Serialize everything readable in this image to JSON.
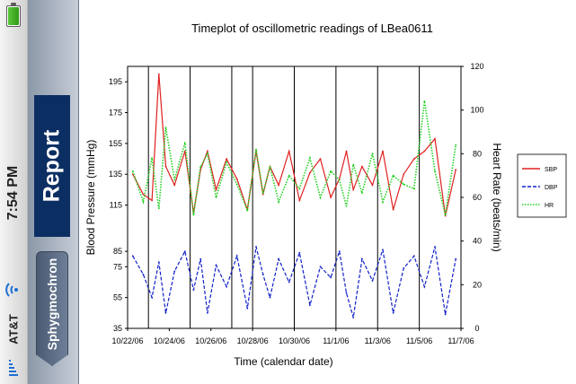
{
  "status_bar": {
    "time": "7:54 PM",
    "carrier": "AT&T",
    "icons": [
      "battery-icon",
      "wifi-icon",
      "signal-bars-icon"
    ]
  },
  "nav": {
    "title": "Report",
    "back_label": "Sphygmochron"
  },
  "chart_data": {
    "type": "line",
    "title": "Timeplot of oscillometric readings of LBea0611",
    "xlabel": "Time (calendar date)",
    "ylabel": "Blood Pressure (mmHg)",
    "ylabel_right": "Heart Rate (beats/min)",
    "x_ticks": [
      "10/22/06",
      "10/24/06",
      "10/26/06",
      "10/28/06",
      "10/30/06",
      "11/1/06",
      "11/3/06",
      "11/5/06",
      "11/7/06"
    ],
    "y_ticks": [
      35,
      55,
      75,
      85,
      115,
      135,
      155,
      175,
      195
    ],
    "y_right_ticks": [
      0,
      20,
      40,
      60,
      80,
      100,
      120
    ],
    "ylim": [
      35,
      205
    ],
    "ylim_right": [
      0,
      120
    ],
    "xlim": [
      "10/22/06",
      "11/7/06"
    ],
    "vertical_lines": [
      "10/23/06",
      "10/25/06",
      "10/27/06",
      "10/28/06",
      "10/30/06",
      "11/1/06",
      "11/3/06",
      "11/5/06"
    ],
    "legend": {
      "placement": "right",
      "entries": [
        {
          "name": "SBP",
          "color": "#e02020",
          "style": "solid"
        },
        {
          "name": "DBP",
          "color": "#1020c8",
          "style": "dashed"
        },
        {
          "name": "HR",
          "color": "#20d020",
          "style": "dotted"
        }
      ]
    },
    "series": [
      {
        "name": "SBP",
        "axis": "left",
        "color": "#e02020",
        "x": [
          "10/22/06",
          "10/22/06",
          "10/23/06",
          "10/23/06",
          "10/23/06",
          "10/24/06",
          "10/24/06",
          "10/25/06",
          "10/25/06",
          "10/25/06",
          "10/26/06",
          "10/26/06",
          "10/27/06",
          "10/27/06",
          "10/28/06",
          "10/28/06",
          "10/28/06",
          "10/29/06",
          "10/29/06",
          "10/30/06",
          "10/30/06",
          "10/31/06",
          "10/31/06",
          "11/1/06",
          "11/1/06",
          "11/1/06",
          "11/2/06",
          "11/2/06",
          "11/3/06",
          "11/3/06",
          "11/4/06",
          "11/4/06",
          "11/5/06",
          "11/5/06",
          "11/6/06",
          "11/6/06"
        ],
        "y": [
          135,
          122,
          118,
          200,
          140,
          128,
          150,
          110,
          138,
          150,
          125,
          145,
          132,
          112,
          150,
          122,
          140,
          128,
          150,
          118,
          136,
          145,
          120,
          132,
          150,
          125,
          140,
          128,
          150,
          112,
          135,
          145,
          150,
          158,
          108,
          138
        ]
      },
      {
        "name": "DBP",
        "axis": "left",
        "color": "#1020c8",
        "x": [
          "10/22/06",
          "10/22/06",
          "10/23/06",
          "10/23/06",
          "10/23/06",
          "10/24/06",
          "10/24/06",
          "10/25/06",
          "10/25/06",
          "10/25/06",
          "10/26/06",
          "10/26/06",
          "10/27/06",
          "10/27/06",
          "10/28/06",
          "10/28/06",
          "10/28/06",
          "10/29/06",
          "10/29/06",
          "10/30/06",
          "10/30/06",
          "10/31/06",
          "10/31/06",
          "11/1/06",
          "11/1/06",
          "11/1/06",
          "11/2/06",
          "11/2/06",
          "11/3/06",
          "11/3/06",
          "11/4/06",
          "11/4/06",
          "11/5/06",
          "11/5/06",
          "11/6/06",
          "11/6/06"
        ],
        "y": [
          82,
          70,
          55,
          78,
          45,
          72,
          85,
          60,
          80,
          45,
          76,
          62,
          82,
          48,
          88,
          70,
          55,
          80,
          65,
          84,
          50,
          75,
          68,
          85,
          58,
          42,
          80,
          66,
          86,
          45,
          74,
          82,
          62,
          88,
          44,
          80
        ]
      },
      {
        "name": "HR",
        "axis": "right",
        "color": "#20d020",
        "x": [
          "10/22/06",
          "10/22/06",
          "10/23/06",
          "10/23/06",
          "10/23/06",
          "10/24/06",
          "10/24/06",
          "10/25/06",
          "10/25/06",
          "10/25/06",
          "10/26/06",
          "10/26/06",
          "10/27/06",
          "10/27/06",
          "10/28/06",
          "10/28/06",
          "10/28/06",
          "10/29/06",
          "10/29/06",
          "10/30/06",
          "10/30/06",
          "10/31/06",
          "10/31/06",
          "11/1/06",
          "11/1/06",
          "11/1/06",
          "11/2/06",
          "11/2/06",
          "11/3/06",
          "11/3/06",
          "11/4/06",
          "11/4/06",
          "11/5/06",
          "11/5/06",
          "11/6/06",
          "11/6/06"
        ],
        "y": [
          72,
          58,
          78,
          55,
          92,
          68,
          85,
          52,
          74,
          80,
          60,
          76,
          66,
          54,
          82,
          62,
          74,
          58,
          70,
          64,
          78,
          60,
          72,
          68,
          56,
          75,
          62,
          80,
          58,
          70,
          66,
          64,
          104,
          72,
          52,
          84
        ]
      }
    ]
  }
}
